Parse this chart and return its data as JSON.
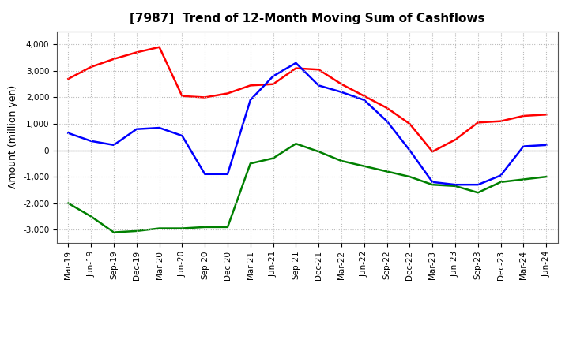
{
  "title": "[7987]  Trend of 12-Month Moving Sum of Cashflows",
  "ylabel": "Amount (million yen)",
  "x_labels": [
    "Mar-19",
    "Jun-19",
    "Sep-19",
    "Dec-19",
    "Mar-20",
    "Jun-20",
    "Sep-20",
    "Dec-20",
    "Mar-21",
    "Jun-21",
    "Sep-21",
    "Dec-21",
    "Mar-22",
    "Jun-22",
    "Sep-22",
    "Dec-22",
    "Mar-23",
    "Jun-23",
    "Sep-23",
    "Dec-23",
    "Mar-24",
    "Jun-24"
  ],
  "operating_cashflow": [
    2700,
    3150,
    3450,
    3700,
    3900,
    2050,
    2000,
    2150,
    2450,
    2500,
    3100,
    3050,
    2500,
    2050,
    1600,
    1000,
    -50,
    400,
    1050,
    1100,
    1300,
    1350
  ],
  "investing_cashflow": [
    -2000,
    -2500,
    -3100,
    -3050,
    -2950,
    -2950,
    -2900,
    -2900,
    -500,
    -300,
    250,
    -50,
    -400,
    -600,
    -800,
    -1000,
    -1300,
    -1350,
    -1600,
    -1200,
    -1100,
    -1000
  ],
  "free_cashflow": [
    650,
    350,
    200,
    800,
    850,
    550,
    -900,
    -900,
    1900,
    2800,
    3300,
    2450,
    2200,
    1900,
    1100,
    0,
    -1200,
    -1300,
    -1300,
    -950,
    150,
    200
  ],
  "operating_color": "#ff0000",
  "investing_color": "#008000",
  "free_color": "#0000ff",
  "ylim": [
    -3500,
    4500
  ],
  "yticks": [
    -3000,
    -2000,
    -1000,
    0,
    1000,
    2000,
    3000,
    4000
  ],
  "bg_color": "#ffffff",
  "grid_color": "#bbbbbb",
  "title_fontsize": 11,
  "axis_fontsize": 9,
  "legend_fontsize": 9,
  "tick_fontsize": 7.5
}
